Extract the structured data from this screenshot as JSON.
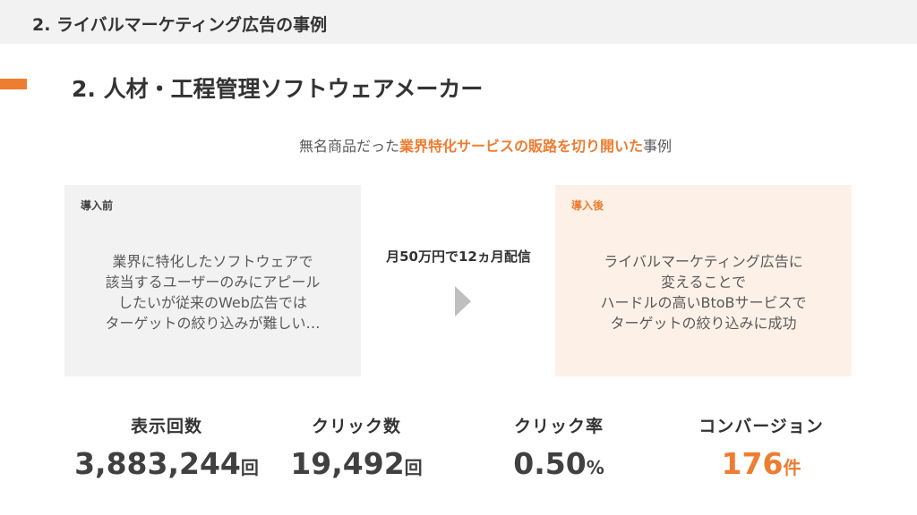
{
  "header": {
    "title": "2. ライバルマーケティング広告の事例"
  },
  "heading": "2. 人材・工程管理ソフトウェアメーカー",
  "subtitle": {
    "before": "無名商品だった",
    "highlight": "業界特化サービスの販路を切り開いた",
    "after": "事例"
  },
  "before_box": {
    "label": "導入前",
    "lines": [
      "業界に特化したソフトウェアで",
      "該当するユーザーのみにアピール",
      "したいが従来のWeb広告では",
      "ターゲットの絞り込みが難しい…"
    ]
  },
  "middle": {
    "text": "月50万円で12ヵ月配信",
    "icon": "arrow-right-icon"
  },
  "after_box": {
    "label": "導入後",
    "lines": [
      "ライバルマーケティング広告に",
      "変えることで",
      "ハードルの高いBtoBサービスで",
      "ターゲットの絞り込みに成功"
    ]
  },
  "stats": [
    {
      "title": "表示回数",
      "value": "3,883,244",
      "unit": "回"
    },
    {
      "title": "クリック数",
      "value": "19,492",
      "unit": "回"
    },
    {
      "title": "クリック率",
      "value": "0.50",
      "unit": "%"
    },
    {
      "title": "コンバージョン",
      "value": "176",
      "unit": "件"
    }
  ],
  "colors": {
    "accent": "#ed7d31",
    "before_bg": "#f2f2f2",
    "after_bg": "#fdf1e7"
  }
}
